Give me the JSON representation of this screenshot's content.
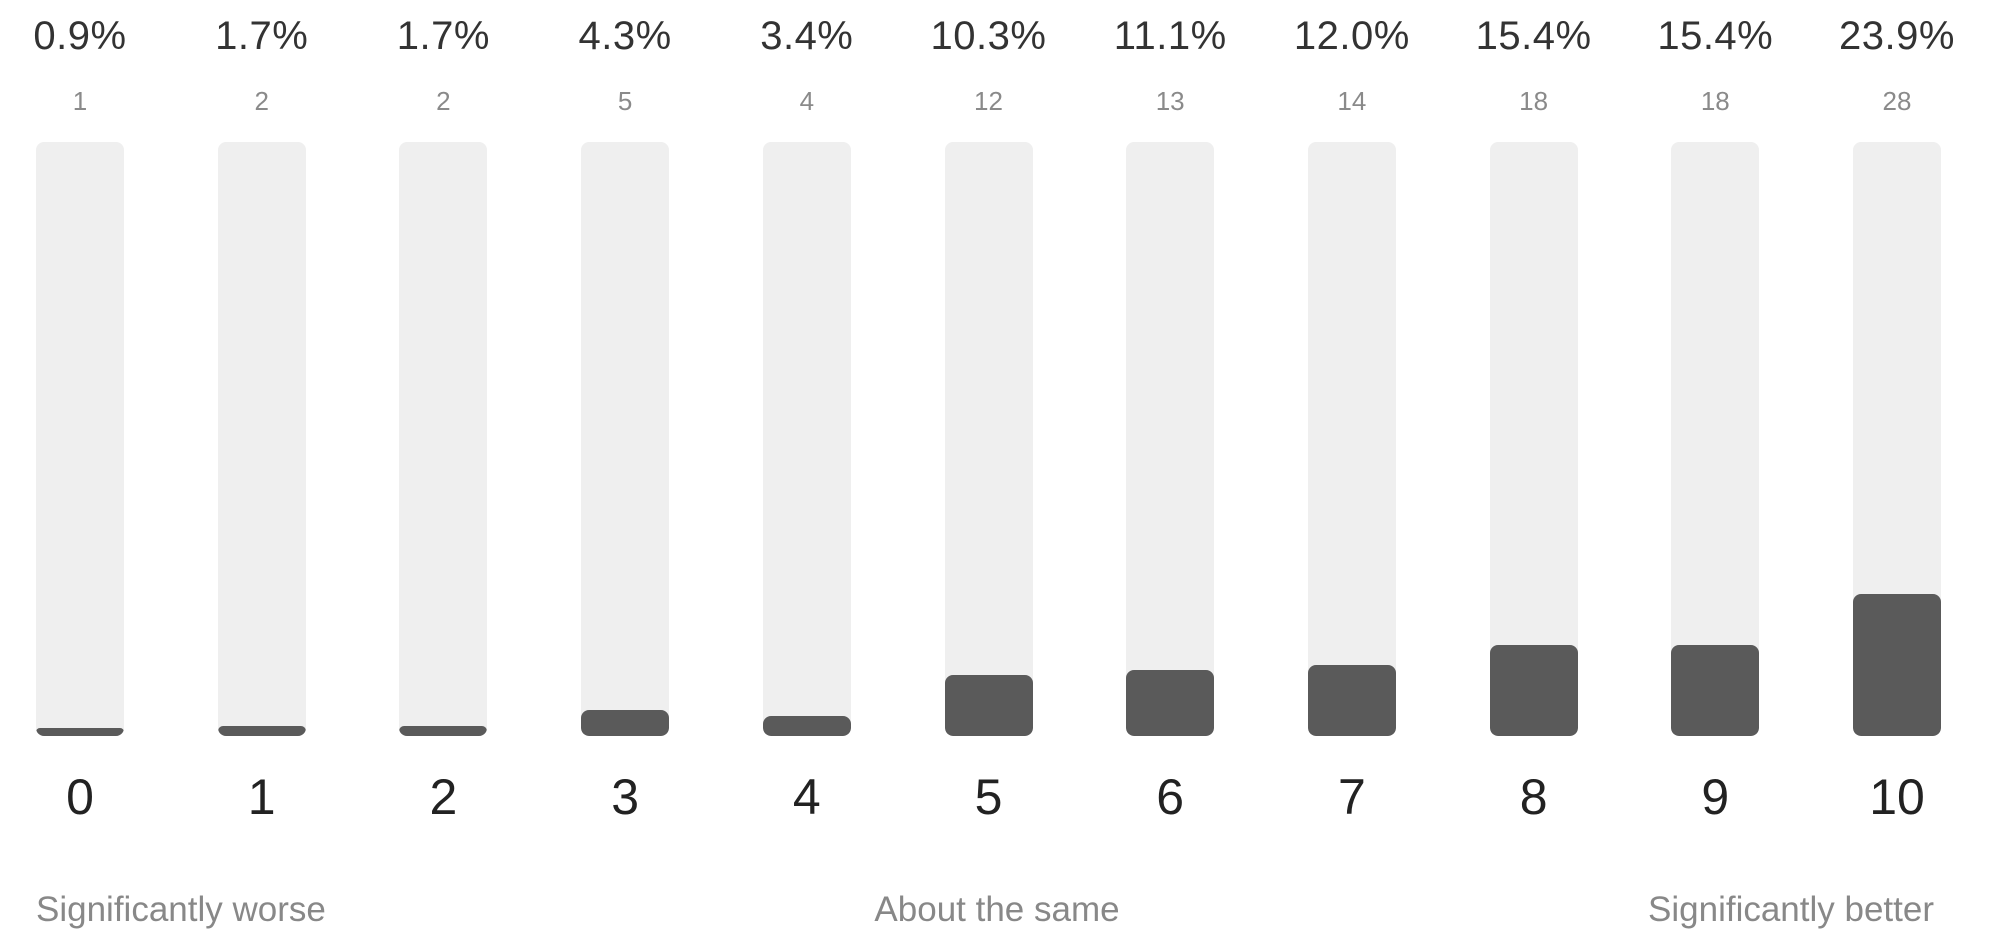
{
  "chart_data": {
    "type": "bar",
    "categories": [
      "0",
      "1",
      "2",
      "3",
      "4",
      "5",
      "6",
      "7",
      "8",
      "9",
      "10"
    ],
    "values": [
      0.9,
      1.7,
      1.7,
      4.3,
      3.4,
      10.3,
      11.1,
      12.0,
      15.4,
      15.4,
      23.9
    ],
    "percent_labels": [
      "0.9%",
      "1.7%",
      "1.7%",
      "4.3%",
      "3.4%",
      "10.3%",
      "11.1%",
      "12.0%",
      "15.4%",
      "15.4%",
      "23.9%"
    ],
    "counts": [
      "1",
      "2",
      "2",
      "5",
      "4",
      "12",
      "13",
      "14",
      "18",
      "18",
      "28"
    ],
    "ylim": [
      0,
      100
    ],
    "grid": false,
    "bar_color": "#5a5a5a",
    "track_color": "#efefef",
    "scale_labels": {
      "left": "Significantly worse",
      "middle": "About the same",
      "right": "Significantly better"
    }
  }
}
